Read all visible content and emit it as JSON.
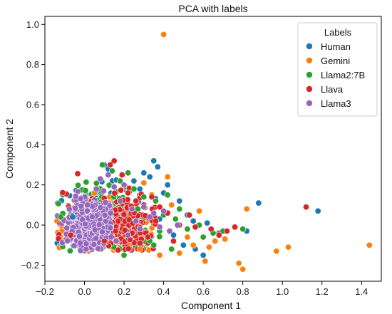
{
  "chart_data": {
    "type": "scatter",
    "title": "PCA with labels",
    "xlabel": "Component 1",
    "ylabel": "Component 2",
    "xlim": [
      -0.2,
      1.5
    ],
    "ylim": [
      -0.28,
      1.04
    ],
    "xticks": [
      -0.2,
      0.0,
      0.2,
      0.4,
      0.6,
      0.8,
      1.0,
      1.2,
      1.4
    ],
    "yticks": [
      -0.2,
      0.0,
      0.2,
      0.4,
      0.6,
      0.8,
      1.0
    ],
    "xtick_labels": [
      "−0.2",
      "0.0",
      "0.2",
      "0.4",
      "0.6",
      "0.8",
      "1.0",
      "1.2",
      "1.4"
    ],
    "ytick_labels": [
      "−0.2",
      "0.0",
      "0.2",
      "0.4",
      "0.6",
      "0.8",
      "1.0"
    ],
    "grid": false,
    "legend": {
      "title": "Labels",
      "placement": "top-right"
    },
    "series": [
      {
        "name": "Human",
        "color": "#1f77b4",
        "points": [
          [
            0.88,
            0.11
          ],
          [
            1.18,
            0.07
          ],
          [
            0.82,
            -0.03
          ],
          [
            0.6,
            -0.15
          ],
          [
            0.35,
            0.32
          ],
          [
            0.37,
            0.29
          ],
          [
            0.33,
            0.24
          ],
          [
            0.4,
            0.16
          ],
          [
            0.48,
            0.12
          ],
          [
            0.52,
            0.05
          ],
          [
            0.45,
            -0.05
          ],
          [
            0.3,
            0.26
          ],
          [
            0.25,
            0.22
          ],
          [
            0.55,
            0.02
          ],
          [
            0.1,
            0.3
          ],
          [
            0.12,
            0.28
          ],
          [
            0.42,
            0.2
          ],
          [
            0.5,
            -0.1
          ],
          [
            0.56,
            -0.12
          ],
          [
            0.28,
            0.18
          ],
          [
            -0.06,
            0.04
          ],
          [
            0.68,
            -0.04
          ],
          [
            0.62,
            0.01
          ],
          [
            0.38,
            0.03
          ]
        ]
      },
      {
        "name": "Gemini",
        "color": "#ff7f0e",
        "points": [
          [
            0.4,
            0.95
          ],
          [
            1.44,
            -0.1
          ],
          [
            1.03,
            -0.11
          ],
          [
            0.97,
            -0.13
          ],
          [
            0.8,
            -0.22
          ],
          [
            0.78,
            -0.19
          ],
          [
            0.82,
            0.08
          ],
          [
            0.66,
            -0.08
          ],
          [
            0.61,
            -0.18
          ],
          [
            0.71,
            -0.07
          ],
          [
            0.42,
            0.24
          ],
          [
            0.3,
            0.21
          ],
          [
            0.55,
            -0.1
          ],
          [
            0.48,
            -0.14
          ],
          [
            0.58,
            0.07
          ],
          [
            0.38,
            -0.15
          ],
          [
            0.52,
            -0.06
          ],
          [
            0.44,
            0.1
          ],
          [
            0.05,
            0.16
          ],
          [
            0.34,
            0.15
          ],
          [
            0.63,
            -0.11
          ],
          [
            0.28,
            -0.12
          ]
        ]
      },
      {
        "name": "Llama2:7B",
        "color": "#2ca02c",
        "points": [
          [
            0.8,
            -0.02
          ],
          [
            0.65,
            -0.04
          ],
          [
            0.48,
            0.08
          ],
          [
            0.4,
            0.05
          ],
          [
            0.36,
            0.12
          ],
          [
            0.3,
            0.14
          ],
          [
            0.22,
            0.26
          ],
          [
            0.25,
            0.18
          ],
          [
            0.33,
            -0.08
          ],
          [
            0.44,
            -0.12
          ],
          [
            0.52,
            -0.02
          ],
          [
            0.18,
            0.22
          ],
          [
            0.09,
            0.3
          ],
          [
            0.14,
            0.27
          ],
          [
            0.38,
            -0.03
          ],
          [
            0.27,
            0.08
          ],
          [
            0.2,
            -0.15
          ],
          [
            0.58,
            0.0
          ],
          [
            0.46,
            0.03
          ],
          [
            -0.12,
            0.04
          ],
          [
            0.42,
            0.15
          ],
          [
            0.35,
            -0.1
          ],
          [
            0.6,
            -0.06
          ],
          [
            0.7,
            -0.03
          ]
        ]
      },
      {
        "name": "Llava",
        "color": "#d62728",
        "points": [
          [
            1.12,
            0.09
          ],
          [
            0.76,
            -0.01
          ],
          [
            0.72,
            -0.03
          ],
          [
            0.68,
            -0.05
          ],
          [
            0.64,
            -0.02
          ],
          [
            0.56,
            -0.01
          ],
          [
            0.48,
            0.0
          ],
          [
            0.42,
            0.06
          ],
          [
            0.38,
            0.09
          ],
          [
            0.34,
            0.14
          ],
          [
            0.3,
            0.1
          ],
          [
            0.26,
            0.12
          ],
          [
            0.22,
            0.16
          ],
          [
            0.15,
            0.32
          ],
          [
            0.13,
            0.3
          ],
          [
            0.19,
            0.25
          ],
          [
            0.32,
            -0.06
          ],
          [
            0.28,
            -0.09
          ],
          [
            0.24,
            -0.04
          ],
          [
            0.36,
            0.02
          ],
          [
            0.45,
            -0.08
          ],
          [
            0.1,
            -0.08
          ],
          [
            -0.07,
            -0.05
          ],
          [
            0.53,
            0.05
          ]
        ]
      },
      {
        "name": "Llama3",
        "color": "#9467bd",
        "points": [
          [
            0.47,
            0.0
          ],
          [
            0.4,
            0.07
          ],
          [
            0.35,
            0.06
          ],
          [
            0.3,
            0.09
          ],
          [
            0.26,
            0.02
          ],
          [
            0.22,
            -0.05
          ],
          [
            0.18,
            0.12
          ],
          [
            0.15,
            0.19
          ],
          [
            0.12,
            0.25
          ],
          [
            0.2,
            0.2
          ],
          [
            0.28,
            -0.02
          ],
          [
            0.33,
            0.04
          ],
          [
            0.08,
            0.23
          ],
          [
            0.06,
            0.18
          ],
          [
            0.24,
            0.08
          ],
          [
            0.16,
            -0.08
          ],
          [
            0.38,
            -0.01
          ],
          [
            0.43,
            -0.03
          ]
        ]
      }
    ],
    "dense_cluster": {
      "note_series_order": [
        "Human",
        "Gemini",
        "Llama2:7B",
        "Llava",
        "Llama3"
      ]
    }
  }
}
